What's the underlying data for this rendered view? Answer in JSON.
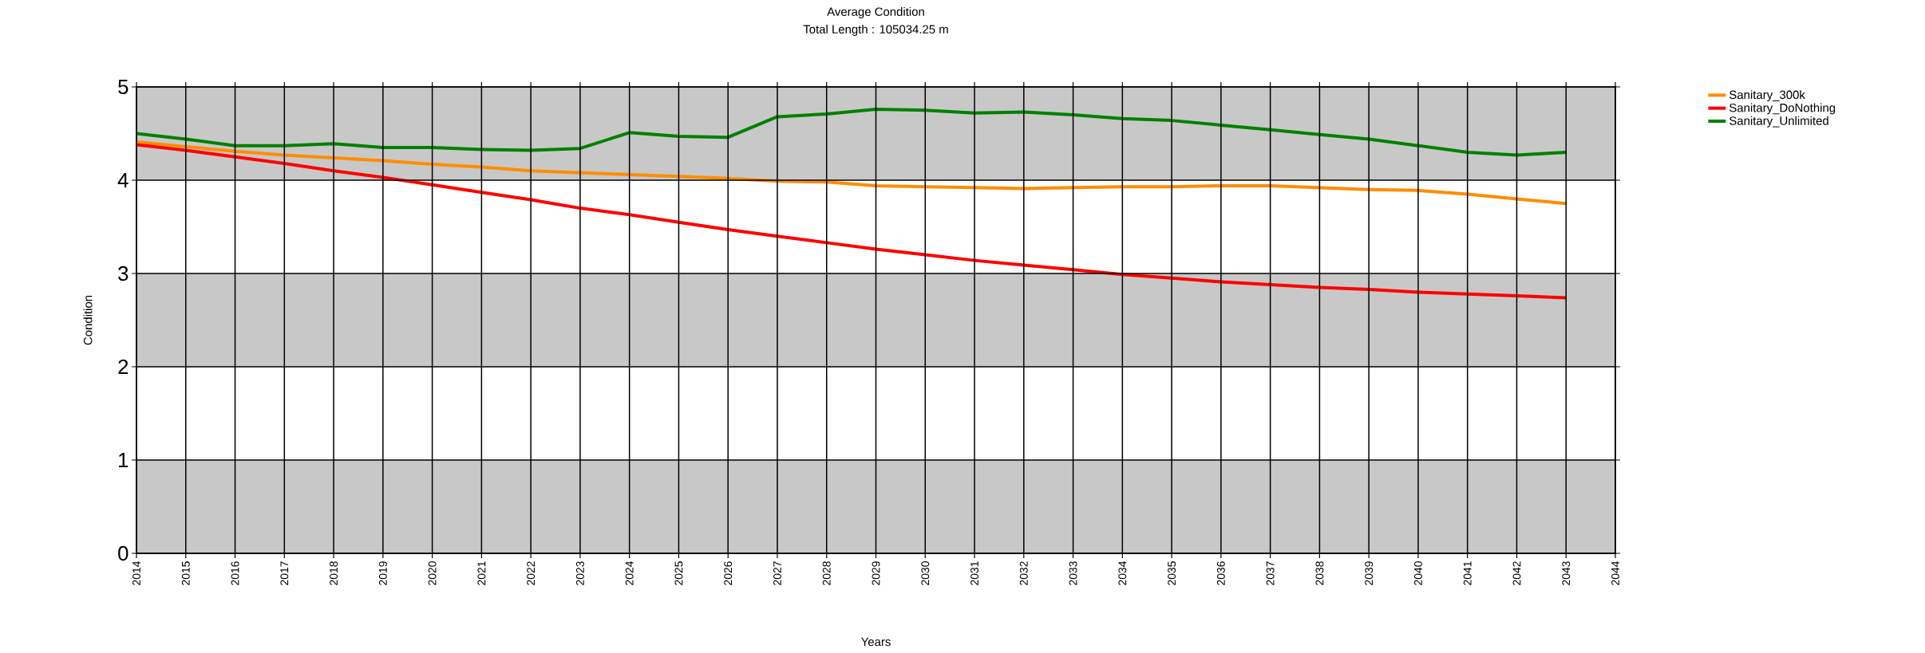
{
  "chart_data": {
    "type": "line",
    "title": "Average Condition",
    "subtitle": "Total Length : 105034.25 m",
    "xlabel": "Years",
    "ylabel": "Condition",
    "x": [
      2014,
      2015,
      2016,
      2017,
      2018,
      2019,
      2020,
      2021,
      2022,
      2023,
      2024,
      2025,
      2026,
      2027,
      2028,
      2029,
      2030,
      2031,
      2032,
      2033,
      2034,
      2035,
      2036,
      2037,
      2038,
      2039,
      2040,
      2041,
      2042,
      2043
    ],
    "series": [
      {
        "name": "Sanitary_300k",
        "color": "#ff8c00",
        "values": [
          4.41,
          4.36,
          4.31,
          4.27,
          4.24,
          4.21,
          4.17,
          4.14,
          4.1,
          4.08,
          4.06,
          4.04,
          4.02,
          3.99,
          3.98,
          3.94,
          3.93,
          3.92,
          3.91,
          3.92,
          3.93,
          3.93,
          3.94,
          3.94,
          3.92,
          3.9,
          3.89,
          3.85,
          3.8,
          3.75
        ]
      },
      {
        "name": "Sanitary_DoNothing",
        "color": "#ff0000",
        "values": [
          4.38,
          4.32,
          4.25,
          4.18,
          4.1,
          4.03,
          3.95,
          3.87,
          3.79,
          3.7,
          3.63,
          3.55,
          3.47,
          3.4,
          3.33,
          3.26,
          3.2,
          3.14,
          3.09,
          3.04,
          2.99,
          2.95,
          2.91,
          2.88,
          2.85,
          2.83,
          2.8,
          2.78,
          2.76,
          2.74
        ]
      },
      {
        "name": "Sanitary_Unlimited",
        "color": "#008000",
        "values": [
          4.5,
          4.44,
          4.37,
          4.37,
          4.39,
          4.35,
          4.35,
          4.33,
          4.32,
          4.34,
          4.51,
          4.47,
          4.46,
          4.68,
          4.71,
          4.76,
          4.75,
          4.72,
          4.73,
          4.7,
          4.66,
          4.64,
          4.59,
          4.54,
          4.49,
          4.44,
          4.37,
          4.3,
          4.27,
          4.3
        ]
      }
    ],
    "xlim": [
      2014,
      2044
    ],
    "xticks": [
      2014,
      2015,
      2016,
      2017,
      2018,
      2019,
      2020,
      2021,
      2022,
      2023,
      2024,
      2025,
      2026,
      2027,
      2028,
      2029,
      2030,
      2031,
      2032,
      2033,
      2034,
      2035,
      2036,
      2037,
      2038,
      2039,
      2040,
      2041,
      2042,
      2043,
      2044
    ],
    "ylim": [
      0,
      5
    ],
    "yticks": [
      0,
      1,
      2,
      3,
      4,
      5
    ],
    "bands": [
      {
        "axis": "y",
        "from": 0,
        "to": 1,
        "color": "#c8c8c8"
      },
      {
        "axis": "y",
        "from": 2,
        "to": 3,
        "color": "#c8c8c8"
      },
      {
        "axis": "y",
        "from": 4,
        "to": 5,
        "color": "#c8c8c8"
      }
    ],
    "grid": true,
    "legend": "top right",
    "marker": "none",
    "line_style": "solid"
  }
}
